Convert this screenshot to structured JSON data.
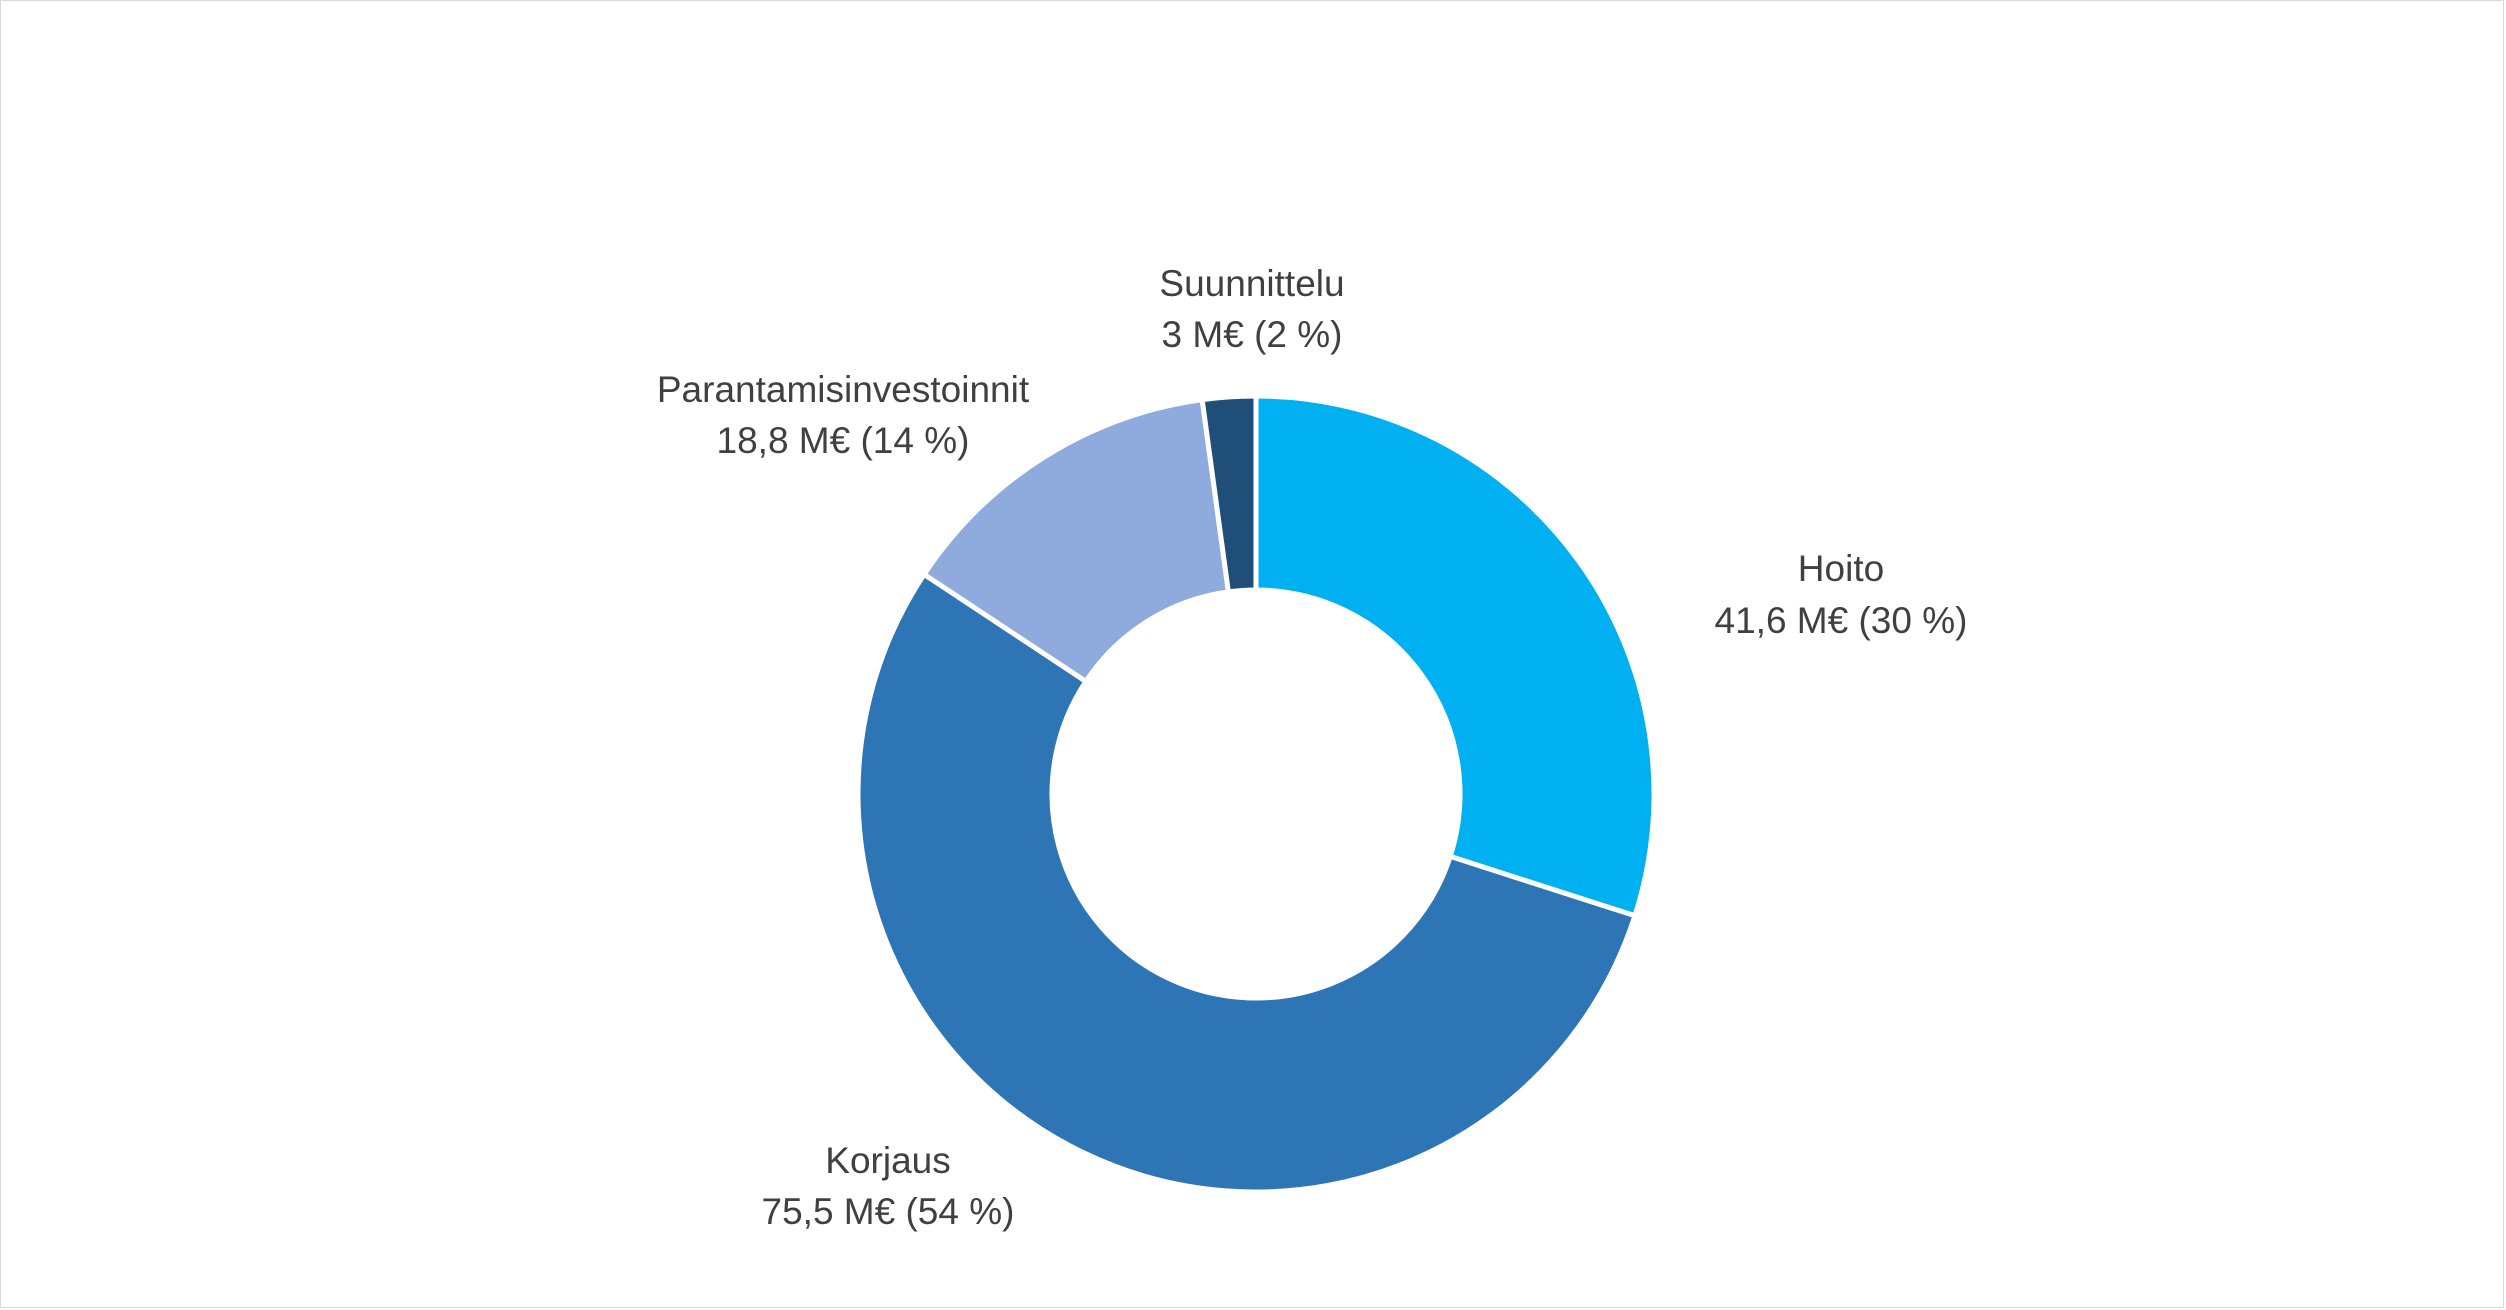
{
  "chart_data": {
    "type": "pie",
    "variant": "donut",
    "unit": "M€",
    "slices": [
      {
        "name": "Hoito",
        "value": 41.6,
        "value_label": "41,6 M€ (30 %)",
        "percent": 30,
        "color": "#00b0f0"
      },
      {
        "name": "Korjaus",
        "value": 75.5,
        "value_label": "75,5 M€ (54 %)",
        "percent": 54,
        "color": "#2e75b6"
      },
      {
        "name": "Parantamisinvestoinnit",
        "value": 18.8,
        "value_label": "18,8 M€ (14 %)",
        "percent": 14,
        "color": "#8faadc"
      },
      {
        "name": "Suunnittelu",
        "value": 3,
        "value_label": "3 M€ (2 %)",
        "percent": 2,
        "color": "#1f4e79"
      }
    ],
    "start_angle": "top",
    "direction": "clockwise",
    "legend": "none"
  }
}
